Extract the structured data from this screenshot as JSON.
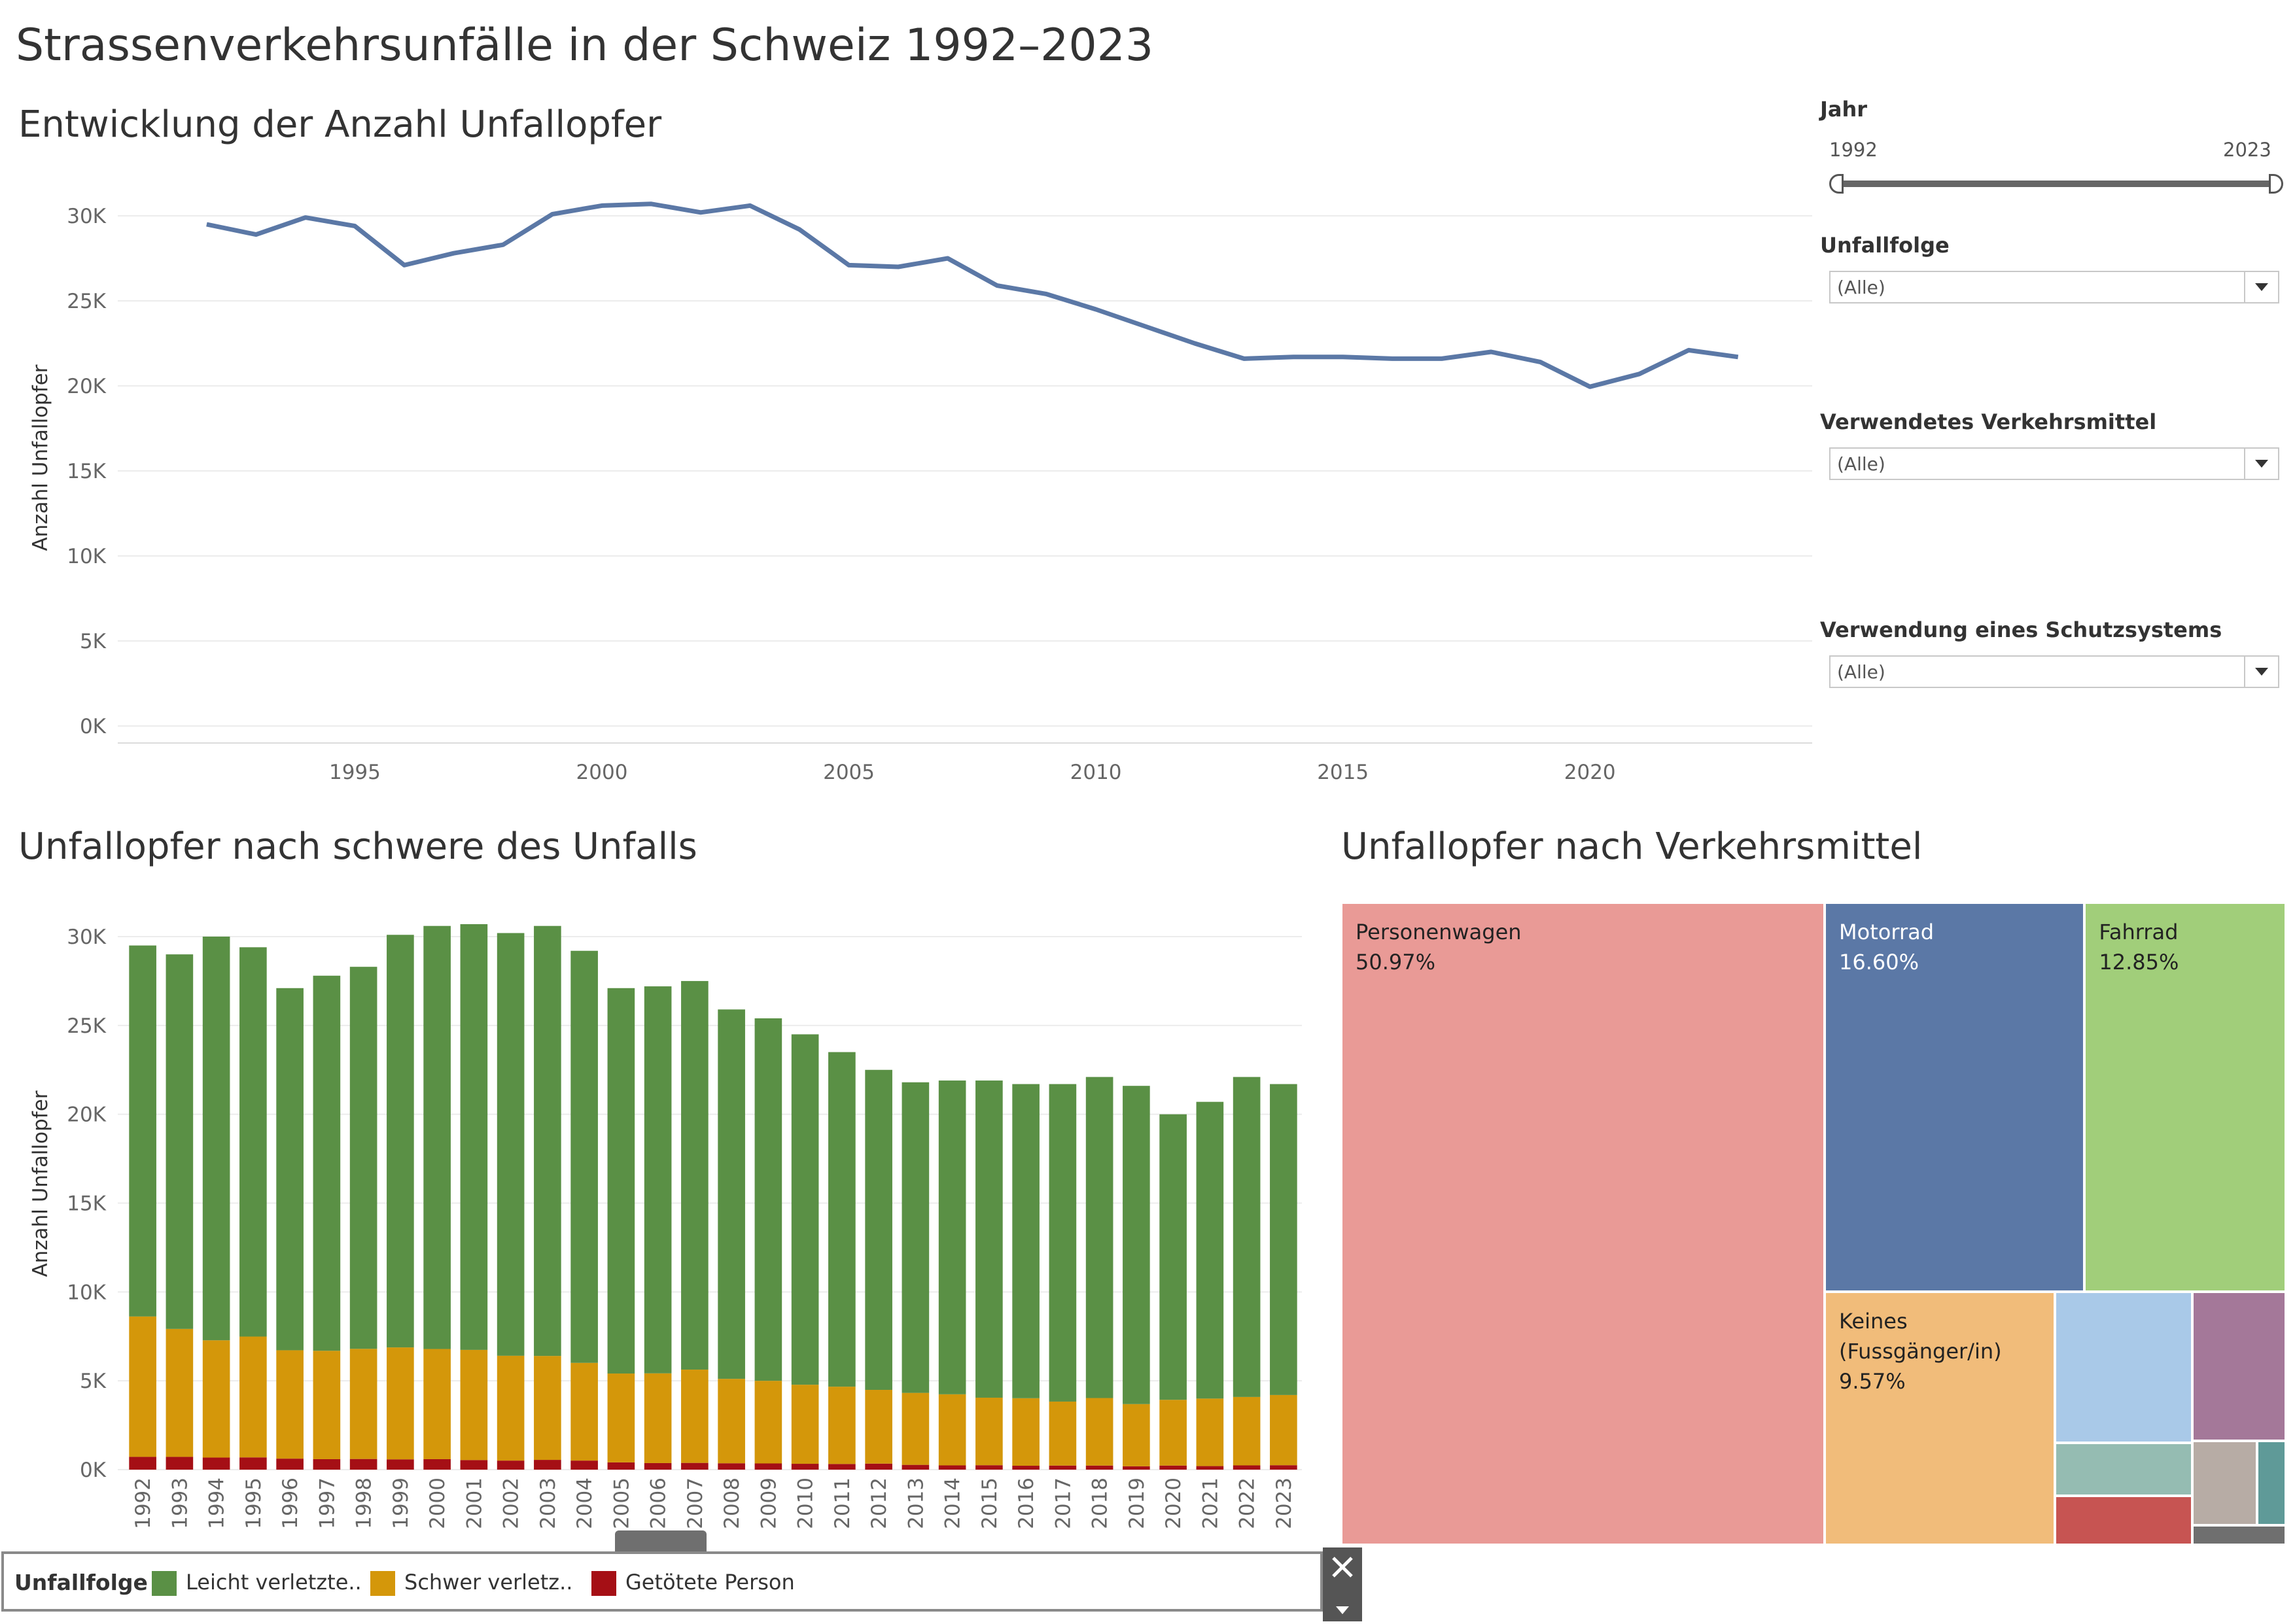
{
  "dashboard": {
    "title": "Strassenverkehrsunfälle in der Schweiz 1992–2023"
  },
  "line_chart": {
    "title": "Entwicklung der Anzahl Unfallopfer"
  },
  "bar_chart": {
    "title": "Unfallopfer nach schwere des Unfalls"
  },
  "treemap": {
    "title": "Unfallopfer nach Verkehrsmittel"
  },
  "filters": {
    "year": {
      "label": "Jahr",
      "min": "1992",
      "max": "2023"
    },
    "unfallfolge": {
      "label": "Unfallfolge",
      "value": "(Alle)"
    },
    "verkehrsmittel": {
      "label": "Verwendetes Verkehrsmittel",
      "value": "(Alle)"
    },
    "schutzsystem": {
      "label": "Verwendung eines Schutzsystems",
      "value": "(Alle)"
    }
  },
  "legend": {
    "title": "Unfallfolge",
    "items": [
      {
        "label": "Leicht verletzte..",
        "color": "#5a9045"
      },
      {
        "label": "Schwer verletz..",
        "color": "#d4970a"
      },
      {
        "label": "Getötete Person",
        "color": "#a50f15"
      }
    ]
  },
  "chart_data": [
    {
      "type": "line",
      "title": "Entwicklung der Anzahl Unfallopfer",
      "ylabel": "Anzahl Unfallopfer",
      "xlabel": "",
      "x": [
        1992,
        1993,
        1994,
        1995,
        1996,
        1997,
        1998,
        1999,
        2000,
        2001,
        2002,
        2003,
        2004,
        2005,
        2006,
        2007,
        2008,
        2009,
        2010,
        2011,
        2012,
        2013,
        2014,
        2015,
        2016,
        2017,
        2018,
        2019,
        2020,
        2021,
        2022,
        2023
      ],
      "series": [
        {
          "values": [
            29500,
            28900,
            29900,
            29400,
            27100,
            27800,
            28300,
            30100,
            30600,
            30700,
            30200,
            30600,
            29200,
            27100,
            27000,
            27500,
            25900,
            25400,
            24500,
            23500,
            22500,
            21600,
            21700,
            21700,
            21600,
            21600,
            22000,
            21400,
            19950,
            20700,
            22100,
            21700
          ],
          "color": "#5b78a6"
        }
      ],
      "yticks": [
        "0K",
        "5K",
        "10K",
        "15K",
        "20K",
        "25K",
        "30K"
      ],
      "xticks": [
        "1995",
        "2000",
        "2005",
        "2010",
        "2015",
        "2020"
      ],
      "ylim": [
        0,
        30000
      ],
      "xlim": [
        1990.2,
        2024.5
      ],
      "grid": true
    },
    {
      "type": "bar",
      "stacked": true,
      "title": "Unfallopfer nach schwere des Unfalls",
      "ylabel": "Anzahl Unfallopfer",
      "categories": [
        "1992",
        "1993",
        "1994",
        "1995",
        "1996",
        "1997",
        "1998",
        "1999",
        "2000",
        "2001",
        "2002",
        "2003",
        "2004",
        "2005",
        "2006",
        "2007",
        "2008",
        "2009",
        "2010",
        "2011",
        "2012",
        "2013",
        "2014",
        "2015",
        "2016",
        "2017",
        "2018",
        "2019",
        "2020",
        "2021",
        "2022",
        "2023"
      ],
      "series": [
        {
          "name": "Getötete Person",
          "color": "#a50f15",
          "values": [
            720,
            720,
            680,
            690,
            620,
            590,
            600,
            580,
            590,
            540,
            510,
            550,
            510,
            410,
            370,
            380,
            360,
            350,
            330,
            320,
            340,
            270,
            240,
            250,
            220,
            230,
            230,
            190,
            230,
            200,
            240,
            250
          ]
        },
        {
          "name": "Schwer verletz..",
          "color": "#d4970a",
          "values": [
            7900,
            7200,
            6600,
            6800,
            6100,
            6100,
            6200,
            6300,
            6200,
            6200,
            5900,
            5850,
            5500,
            5000,
            5050,
            5250,
            4750,
            4650,
            4450,
            4350,
            4150,
            4050,
            4000,
            3800,
            3800,
            3600,
            3800,
            3500,
            3700,
            3800,
            3850,
            3950
          ]
        },
        {
          "name": "Leicht verletzte..",
          "color": "#5a9045",
          "values": [
            20880,
            21080,
            22720,
            21910,
            20380,
            21110,
            21500,
            23220,
            23810,
            23960,
            23790,
            24200,
            23190,
            21690,
            21780,
            21870,
            20790,
            20400,
            19720,
            18830,
            18010,
            17480,
            17660,
            17850,
            17680,
            17870,
            18070,
            17910,
            16070,
            16700,
            18010,
            17500
          ]
        }
      ],
      "yticks": [
        "0K",
        "5K",
        "10K",
        "15K",
        "20K",
        "25K",
        "30K"
      ],
      "ylim": [
        0,
        30000
      ],
      "grid": true
    },
    {
      "type": "treemap",
      "title": "Unfallopfer nach Verkehrsmittel",
      "items": [
        {
          "label": "Personenwagen",
          "value_label": "50.97%",
          "value": 50.97,
          "color": "#e99a96"
        },
        {
          "label": "Motorrad",
          "value_label": "16.60%",
          "value": 16.6,
          "color": "#5b78a6"
        },
        {
          "label": "Fahrrad",
          "value_label": "12.85%",
          "value": 12.85,
          "color": "#a1ce7a"
        },
        {
          "label": "Keines (Fussgänger/in)",
          "value_label": "9.57%",
          "value": 9.57,
          "color": "#f1bc7a"
        },
        {
          "label": "",
          "value_label": "",
          "value": 3.4,
          "color": "#a9c9e8"
        },
        {
          "label": "",
          "value_label": "",
          "value": 2.3,
          "color": "#a47899"
        },
        {
          "label": "",
          "value_label": "",
          "value": 1.2,
          "color": "#95bcb2"
        },
        {
          "label": "",
          "value_label": "",
          "value": 1.1,
          "color": "#c75452"
        },
        {
          "label": "",
          "value_label": "",
          "value": 0.9,
          "color": "#b7aca5"
        },
        {
          "label": "",
          "value_label": "",
          "value": 0.4,
          "color": "#5f9a98"
        },
        {
          "label": "",
          "value_label": "",
          "value": 0.3,
          "color": "#6f6f6f"
        }
      ]
    }
  ]
}
